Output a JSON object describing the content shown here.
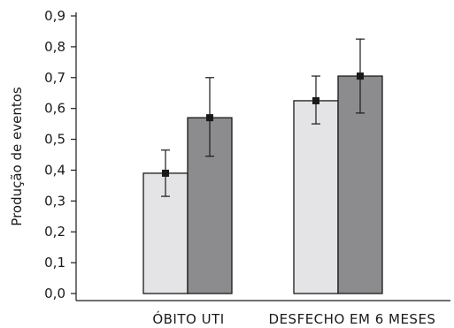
{
  "chart_data": {
    "type": "bar",
    "ylabel": "Produção de eventos",
    "xlabel": "",
    "ylim": [
      0,
      0.9
    ],
    "yticks": [
      "0,0",
      "0,1",
      "0,2",
      "0,3",
      "0,4",
      "0,5",
      "0,6",
      "0,7",
      "0,8",
      "0,9"
    ],
    "grid": false,
    "categories": [
      "ÓBITO UTI",
      "DESFECHO EM 6 MESES"
    ],
    "series": [
      {
        "values": [
          0.39,
          0.625
        ],
        "error_low": [
          0.315,
          0.55
        ],
        "error_high": [
          0.465,
          0.705
        ],
        "color": "#e4e4e6"
      },
      {
        "values": [
          0.57,
          0.705
        ],
        "error_low": [
          0.445,
          0.585
        ],
        "error_high": [
          0.7,
          0.825
        ],
        "color": "#8c8c8e"
      }
    ]
  }
}
